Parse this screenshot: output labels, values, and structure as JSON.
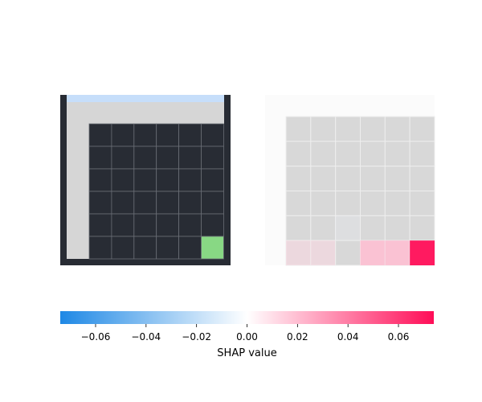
{
  "chart_data": {
    "type": "heatmap",
    "description_panels": [
      {
        "panel": "input",
        "grid_size": [
          8,
          7
        ],
        "cells": [
          [
            "#c6defa",
            "#c6defa",
            "#c6defa",
            "#c6defa",
            "#c6defa",
            "#c6defa",
            "#c6defa"
          ],
          [
            "#d6d6d6",
            "#d6d6d6",
            "#d6d6d6",
            "#d6d6d6",
            "#d6d6d6",
            "#d6d6d6",
            "#d6d6d6"
          ],
          [
            "#d6d6d6",
            "#282c34",
            "#282c34",
            "#282c34",
            "#282c34",
            "#282c34",
            "#282c34"
          ],
          [
            "#d6d6d6",
            "#282c34",
            "#282c34",
            "#282c34",
            "#282c34",
            "#282c34",
            "#282c34"
          ],
          [
            "#d6d6d6",
            "#282c34",
            "#282c34",
            "#282c34",
            "#282c34",
            "#282c34",
            "#282c34"
          ],
          [
            "#d6d6d6",
            "#282c34",
            "#282c34",
            "#282c34",
            "#282c34",
            "#282c34",
            "#282c34"
          ],
          [
            "#d6d6d6",
            "#282c34",
            "#282c34",
            "#282c34",
            "#282c34",
            "#282c34",
            "#282c34"
          ],
          [
            "#d6d6d6",
            "#282c34",
            "#282c34",
            "#282c34",
            "#282c34",
            "#282c34",
            "#88d884"
          ]
        ]
      },
      {
        "panel": "shap",
        "rows": 7,
        "cols": 7,
        "values": [
          [
            0.0,
            0.0,
            0.0,
            0.0,
            0.0,
            0.0,
            0.0
          ],
          [
            0.0,
            0.0,
            0.0,
            0.0,
            0.0,
            0.0,
            0.0
          ],
          [
            0.0,
            0.0,
            0.0,
            0.0,
            0.0,
            0.0,
            0.0
          ],
          [
            0.0,
            0.0,
            0.0,
            0.0,
            0.0,
            0.0,
            0.0
          ],
          [
            0.0,
            0.0,
            0.0,
            0.0,
            0.0,
            0.0,
            0.0
          ],
          [
            0.0,
            0.0,
            0.0,
            -0.005,
            0.0,
            0.0,
            0.0
          ],
          [
            0.0,
            0.012,
            0.012,
            0.0,
            0.02,
            0.02,
            0.07
          ]
        ]
      }
    ],
    "colorbar": {
      "range": [
        -0.074,
        0.074
      ],
      "ticks": [
        -0.06,
        -0.04,
        -0.02,
        0.0,
        0.02,
        0.04,
        0.06
      ],
      "tick_labels": [
        "−0.06",
        "−0.04",
        "−0.02",
        "0.00",
        "0.02",
        "0.04",
        "0.06"
      ],
      "label": "SHAP value",
      "colors": {
        "negative": "#1e88e5",
        "zero": "#ffffff",
        "positive": "#ff0d57"
      }
    }
  }
}
